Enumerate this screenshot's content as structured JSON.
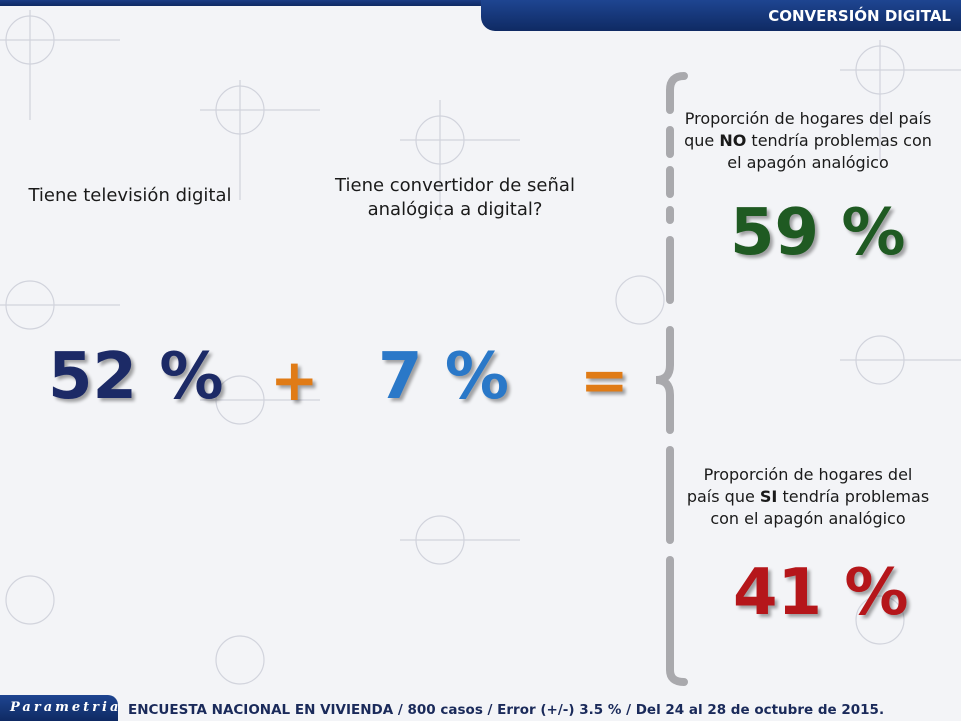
{
  "header": {
    "title": "CONVERSIÓN DIGITAL"
  },
  "left": {
    "label": "Tiene televisión digital",
    "value": "52 %",
    "color": "#1c2a66"
  },
  "middle": {
    "label_line1": "Tiene convertidor de señal",
    "label_line2": "analógica a digital?",
    "value": "7 %",
    "color": "#2a78c8"
  },
  "operators": {
    "plus": "+",
    "equals": "=",
    "color": "#e07b16"
  },
  "right_top": {
    "line1": "Proporción de hogares del país",
    "line2_pre": "que ",
    "line2_bold": "NO",
    "line2_post": " tendría problemas con",
    "line3": "el apagón analógico",
    "value": "59 %",
    "color": "#1f5a22"
  },
  "right_bottom": {
    "line1": "Proporción de hogares del",
    "line2_pre": "país que ",
    "line2_bold": "SI",
    "line2_post": " tendría problemas",
    "line3": "con el apagón analógico",
    "value": "41 %",
    "color": "#b5161a"
  },
  "watermark": {
    "text": "Parametria"
  },
  "footer": {
    "logo": "Parametria",
    "text": "ENCUESTA NACIONAL EN VIVIENDA / 800 casos / Error (+/-) 3.5 % / Del 24 al 28 de octubre de 2015."
  }
}
